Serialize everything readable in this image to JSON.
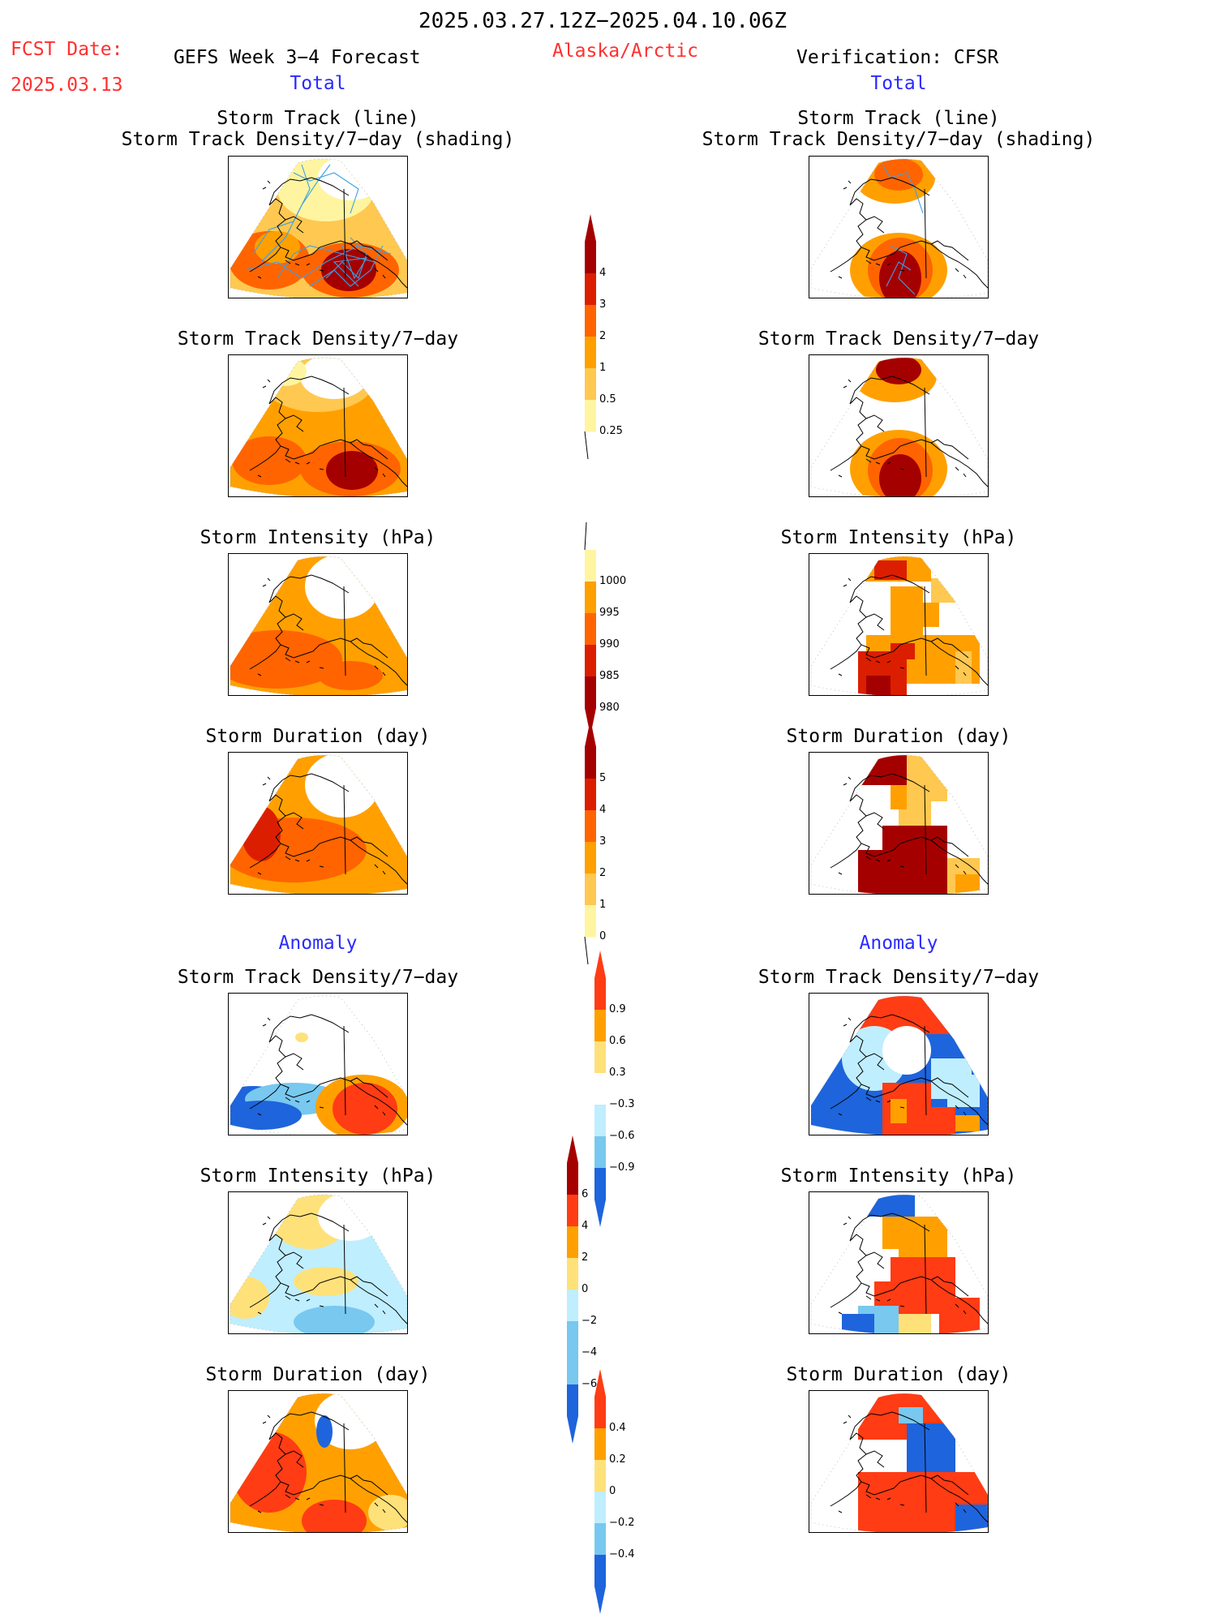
{
  "header": {
    "period": "2025.03.27.12Z−2025.04.10.06Z",
    "fcst_label": "FCST Date:",
    "fcst_date": "2025.03.13",
    "model": "GEFS Week 3−4 Forecast",
    "region": "Alaska/Arctic",
    "verification": "Verification: CFSR"
  },
  "columns": [
    {
      "section_total": "Total",
      "section_anomaly": "Anomaly"
    },
    {
      "section_total": "Total",
      "section_anomaly": "Anomaly"
    }
  ],
  "panels": {
    "track_title_1": "Storm Track (line)",
    "track_title_2": "Storm Track Density/7−day (shading)",
    "density": "Storm Track Density/7−day",
    "intensity": "Storm Intensity (hPa)",
    "duration": "Storm Duration (day)"
  },
  "colorbars": {
    "density_total": [
      "4",
      "3",
      "2",
      "1",
      "0.5",
      "0.25"
    ],
    "intensity_total": [
      "1000",
      "995",
      "990",
      "985",
      "980"
    ],
    "duration_total": [
      "5",
      "4",
      "3",
      "2",
      "1",
      "0"
    ],
    "density_anom": [
      "0.9",
      "0.6",
      "0.3",
      "−0.3",
      "−0.6",
      "−0.9"
    ],
    "intensity_anom": [
      "6",
      "4",
      "2",
      "0",
      "−2",
      "−4",
      "−6"
    ],
    "duration_anom": [
      "0.4",
      "0.2",
      "0",
      "−0.2",
      "−0.4"
    ]
  },
  "colors": {
    "dark_red": "#a50000",
    "red": "#dc1e00",
    "orange_red": "#ff6400",
    "orange": "#ffa000",
    "light_orange": "#ffc850",
    "pale_yellow": "#fff5a0",
    "anom_red": "#ff3c14",
    "anom_orange": "#ffa000",
    "anom_yellow": "#ffe17a",
    "anom_cyan": "#bfeeff",
    "anom_lightblue": "#78c8f0",
    "anom_blue": "#1e64dc",
    "track_line": "#3ca0e6"
  }
}
